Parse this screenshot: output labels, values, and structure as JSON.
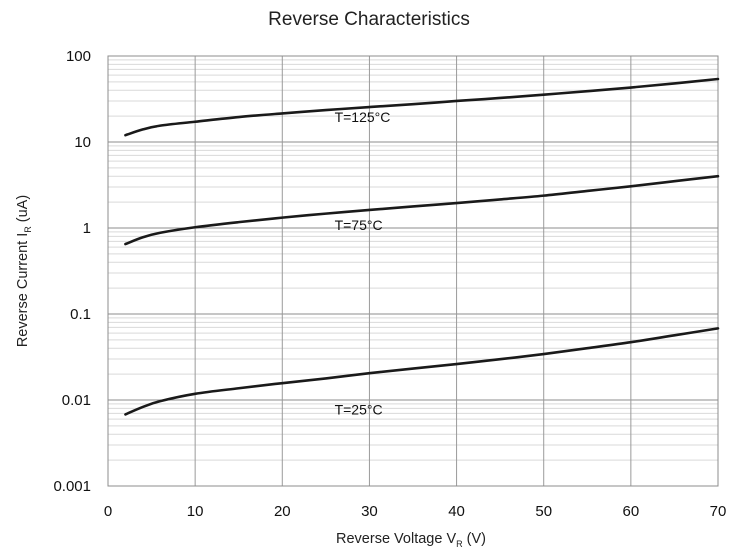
{
  "chart_data": {
    "type": "line",
    "title": "Reverse Characteristics",
    "xlabel": {
      "main": "Reverse Voltage V",
      "subscript": "R",
      "suffix": " (V)"
    },
    "ylabel": {
      "main": "Reverse Current I",
      "subscript": "R",
      "suffix": " (uA)"
    },
    "x_scale": "linear",
    "y_scale": "log",
    "xlim": [
      0,
      70
    ],
    "ylim": [
      0.001,
      100
    ],
    "x_ticks": [
      0,
      10,
      20,
      30,
      40,
      50,
      60,
      70
    ],
    "x_tick_labels": [
      "0",
      "10",
      "20",
      "30",
      "40",
      "50",
      "60",
      "70"
    ],
    "y_ticks": [
      0.001,
      0.01,
      0.1,
      1,
      10,
      100
    ],
    "y_tick_labels": [
      "0.001",
      "0.01",
      "0.1",
      "1",
      "10",
      "100"
    ],
    "grid": {
      "major": true,
      "minor_y": true
    },
    "line_color": "#1a1a1a",
    "series": [
      {
        "label": "T=125°C",
        "label_anchor": {
          "x": 26,
          "y": 17
        },
        "points": [
          {
            "x": 2,
            "y": 12
          },
          {
            "x": 4,
            "y": 14
          },
          {
            "x": 6,
            "y": 15.5
          },
          {
            "x": 10,
            "y": 17.2
          },
          {
            "x": 15,
            "y": 19.5
          },
          {
            "x": 20,
            "y": 21.5
          },
          {
            "x": 25,
            "y": 23.5
          },
          {
            "x": 30,
            "y": 25.5
          },
          {
            "x": 35,
            "y": 27.5
          },
          {
            "x": 40,
            "y": 30
          },
          {
            "x": 45,
            "y": 32.5
          },
          {
            "x": 50,
            "y": 35.5
          },
          {
            "x": 55,
            "y": 39
          },
          {
            "x": 60,
            "y": 43
          },
          {
            "x": 65,
            "y": 48
          },
          {
            "x": 70,
            "y": 54
          }
        ]
      },
      {
        "label": "T=75°C",
        "label_anchor": {
          "x": 26,
          "y": 0.95
        },
        "points": [
          {
            "x": 2,
            "y": 0.65
          },
          {
            "x": 4,
            "y": 0.78
          },
          {
            "x": 6,
            "y": 0.88
          },
          {
            "x": 10,
            "y": 1.02
          },
          {
            "x": 15,
            "y": 1.17
          },
          {
            "x": 20,
            "y": 1.32
          },
          {
            "x": 25,
            "y": 1.47
          },
          {
            "x": 30,
            "y": 1.62
          },
          {
            "x": 35,
            "y": 1.78
          },
          {
            "x": 40,
            "y": 1.95
          },
          {
            "x": 45,
            "y": 2.15
          },
          {
            "x": 50,
            "y": 2.38
          },
          {
            "x": 55,
            "y": 2.7
          },
          {
            "x": 60,
            "y": 3.05
          },
          {
            "x": 65,
            "y": 3.5
          },
          {
            "x": 70,
            "y": 4
          }
        ]
      },
      {
        "label": "T=25°C",
        "label_anchor": {
          "x": 26,
          "y": 0.0068
        },
        "points": [
          {
            "x": 2,
            "y": 0.0068
          },
          {
            "x": 4,
            "y": 0.0083
          },
          {
            "x": 6,
            "y": 0.0097
          },
          {
            "x": 10,
            "y": 0.0118
          },
          {
            "x": 15,
            "y": 0.0137
          },
          {
            "x": 20,
            "y": 0.0157
          },
          {
            "x": 25,
            "y": 0.0178
          },
          {
            "x": 30,
            "y": 0.0205
          },
          {
            "x": 35,
            "y": 0.0232
          },
          {
            "x": 40,
            "y": 0.0262
          },
          {
            "x": 45,
            "y": 0.0298
          },
          {
            "x": 50,
            "y": 0.0342
          },
          {
            "x": 55,
            "y": 0.04
          },
          {
            "x": 60,
            "y": 0.047
          },
          {
            "x": 65,
            "y": 0.0565
          },
          {
            "x": 70,
            "y": 0.068
          }
        ]
      }
    ]
  }
}
